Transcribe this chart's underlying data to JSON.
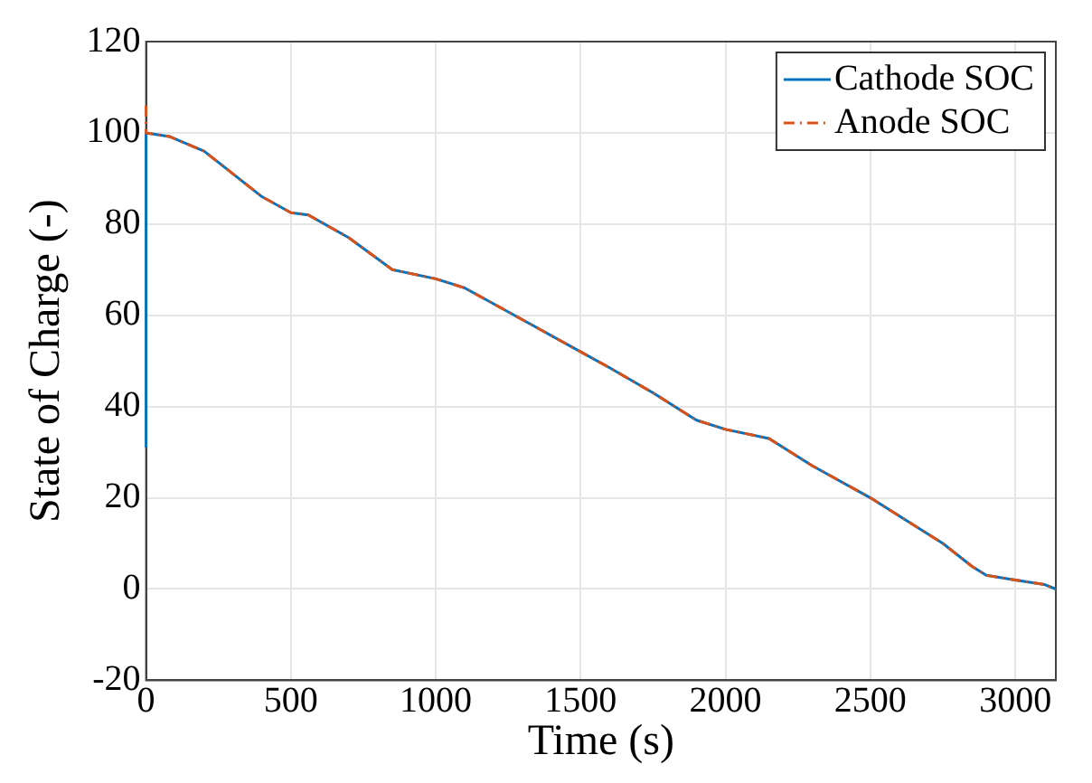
{
  "chart_data": {
    "type": "line",
    "xlabel": "Time (s)",
    "ylabel": "State of Charge (-)",
    "xlim": [
      0,
      3140
    ],
    "xticks": [
      0,
      500,
      1000,
      1500,
      2000,
      2500,
      3000
    ],
    "ylim": [
      -20,
      120
    ],
    "yticks": [
      -20,
      0,
      20,
      40,
      60,
      80,
      100,
      120
    ],
    "grid": true,
    "legend": "top right",
    "marker": "none",
    "series": [
      {
        "name": "Cathode SOC",
        "color": "#0072bd",
        "line_style": "solid",
        "x": [
          0,
          0,
          80,
          200,
          400,
          500,
          560,
          700,
          850,
          1000,
          1100,
          1300,
          1500,
          1600,
          1750,
          1900,
          2000,
          2150,
          2300,
          2500,
          2600,
          2750,
          2850,
          2900,
          3000,
          3100,
          3140
        ],
        "values": [
          31,
          100,
          99.2,
          96,
          86,
          82.5,
          82,
          77,
          70,
          68,
          66,
          59,
          52,
          48.5,
          43,
          37,
          35,
          33,
          27,
          20,
          16,
          10,
          5,
          3,
          2,
          1,
          0
        ]
      },
      {
        "name": "Anode SOC",
        "color": "#d95319",
        "line_style": "dashed",
        "x": [
          0,
          0,
          80,
          200,
          400,
          500,
          560,
          700,
          850,
          1000,
          1100,
          1300,
          1500,
          1600,
          1750,
          1900,
          2000,
          2150,
          2300,
          2500,
          2600,
          2750,
          2850,
          2900,
          3000,
          3100,
          3140
        ],
        "values": [
          106,
          100,
          99.2,
          96,
          86,
          82.5,
          82,
          77,
          70,
          68,
          66,
          59,
          52,
          48.5,
          43,
          37,
          35,
          33,
          27,
          20,
          16,
          10,
          5,
          3,
          2,
          1,
          0
        ]
      }
    ]
  }
}
